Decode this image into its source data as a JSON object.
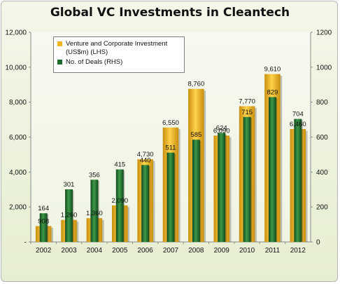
{
  "chart_data": {
    "type": "bar",
    "title": "Global VC Investments in Cleantech",
    "categories": [
      "2002",
      "2003",
      "2004",
      "2005",
      "2006",
      "2007",
      "2008",
      "2009",
      "2010",
      "2011",
      "2012"
    ],
    "series": [
      {
        "name": "Venture and Corporate Investment (US$m) (LHS)",
        "axis": "left",
        "color": "#f0b521",
        "values": [
          908,
          1260,
          1360,
          2090,
          4730,
          6550,
          8760,
          6090,
          7770,
          9610,
          6460
        ],
        "labels": [
          "908",
          "1,260",
          "1,360",
          "2,090",
          "4,730",
          "6,550",
          "8,760",
          "6,090",
          "7,770",
          "9,610",
          "6,460"
        ]
      },
      {
        "name": "No. of Deals (RHS)",
        "axis": "right",
        "color": "#1e6b2d",
        "values": [
          164,
          301,
          356,
          415,
          440,
          511,
          585,
          624,
          715,
          829,
          704
        ],
        "labels": [
          "164",
          "301",
          "356",
          "415",
          "440",
          "511",
          "585",
          "624",
          "715",
          "829",
          "704"
        ]
      }
    ],
    "y_left": {
      "ylim": [
        0,
        12000
      ],
      "ticks": [
        0,
        2000,
        4000,
        6000,
        8000,
        10000,
        12000
      ],
      "tick_labels": [
        "-",
        "2,000",
        "4,000",
        "6,000",
        "8,000",
        "10,000",
        "12,000"
      ]
    },
    "y_right": {
      "ylim": [
        0,
        1200
      ],
      "ticks": [
        0,
        200,
        400,
        600,
        800,
        1000,
        1200
      ],
      "tick_labels": [
        "0",
        "200",
        "400",
        "600",
        "800",
        "1000",
        "1200"
      ]
    },
    "legend": {
      "placement": "top-left",
      "items": [
        "Venture and Corporate Investment (US$m) (LHS)",
        "No. of Deals (RHS)"
      ]
    },
    "grid": false
  }
}
